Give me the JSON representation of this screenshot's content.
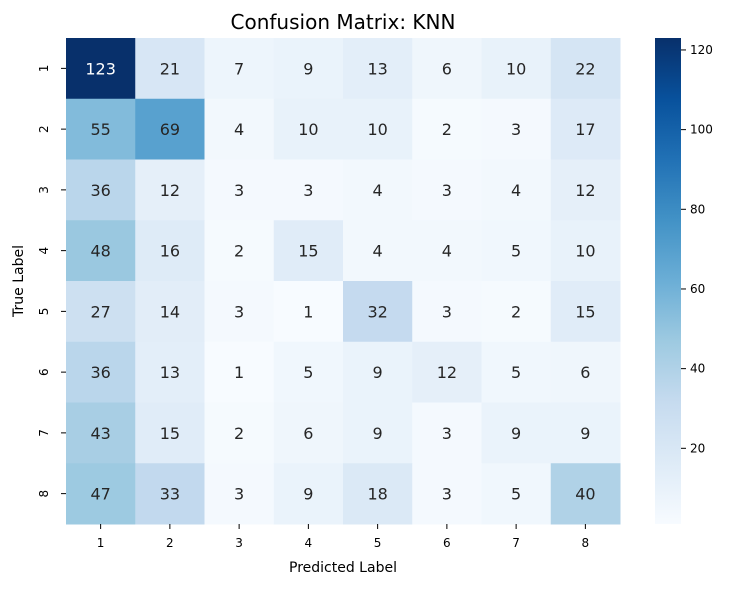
{
  "chart_data": {
    "type": "heatmap",
    "title": "Confusion Matrix: KNN",
    "xlabel": "Predicted Label",
    "ylabel": "True Label",
    "x_categories": [
      "1",
      "2",
      "3",
      "4",
      "5",
      "6",
      "7",
      "8"
    ],
    "y_categories": [
      "1",
      "2",
      "3",
      "4",
      "5",
      "6",
      "7",
      "8"
    ],
    "values": [
      [
        123,
        21,
        7,
        9,
        13,
        6,
        10,
        22
      ],
      [
        55,
        69,
        4,
        10,
        10,
        2,
        3,
        17
      ],
      [
        36,
        12,
        3,
        3,
        4,
        3,
        4,
        12
      ],
      [
        48,
        16,
        2,
        15,
        4,
        4,
        5,
        10
      ],
      [
        27,
        14,
        3,
        1,
        32,
        3,
        2,
        15
      ],
      [
        36,
        13,
        1,
        5,
        9,
        12,
        5,
        6
      ],
      [
        43,
        15,
        2,
        6,
        9,
        3,
        9,
        9
      ],
      [
        47,
        33,
        3,
        9,
        18,
        3,
        5,
        40
      ]
    ],
    "colormap": "Blues",
    "color_range": [
      1,
      123
    ],
    "colorbar_ticks": [
      "20",
      "40",
      "60",
      "80",
      "100",
      "120"
    ],
    "grid": false
  }
}
